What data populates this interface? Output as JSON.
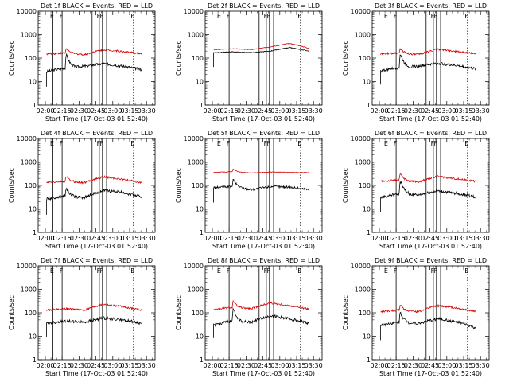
{
  "page": {
    "background": "#ffffff",
    "events_color": "#000000",
    "lld_color": "#d40000"
  },
  "chart_data": [
    {
      "type": "line",
      "detector": "1f",
      "title": "Det 1f BLACK = Events, RED = LLD",
      "xlabel": "Start Time (17-Oct-03 01:52:40)",
      "ylabel": "Counts/sec",
      "xticks": [
        "02:00",
        "02:15",
        "02:30",
        "02:45",
        "03:00",
        "03:15",
        "03:30"
      ],
      "yticks": [
        "1",
        "10",
        "100",
        "1000",
        "10000"
      ],
      "ylim": [
        1,
        10000
      ],
      "xlim_min": [
        0,
        100
      ],
      "series": [
        {
          "name": "Events",
          "color": "#000000",
          "peak": 145,
          "peak_at": 21,
          "base": [
            26,
            38,
            45,
            58,
            45,
            32
          ],
          "noise": 0.06
        },
        {
          "name": "LLD",
          "color": "#d40000",
          "peak": 260,
          "peak_at": 21,
          "base": [
            150,
            165,
            140,
            230,
            190,
            150
          ],
          "noise": 0.04
        }
      ],
      "markers": [
        {
          "t": 8,
          "label": "E",
          "style": "solid"
        },
        {
          "t": 17,
          "label": "F",
          "style": "solid"
        },
        {
          "t": 46,
          "label": "",
          "style": "solid"
        },
        {
          "t": 53,
          "label": "F",
          "style": "solid"
        },
        {
          "t": 56,
          "label": "F",
          "style": "solid"
        },
        {
          "t": 60,
          "label": "",
          "style": "solid"
        },
        {
          "t": 86,
          "label": "E",
          "style": "dotted"
        }
      ]
    },
    {
      "type": "line",
      "detector": "2f",
      "title": "Det 2f BLACK = Events, RED = LLD",
      "xlabel": "Start Time (17-Oct-03 01:52:40)",
      "ylabel": "Counts/sec",
      "xticks": [
        "02:00",
        "02:15",
        "02:30",
        "02:45",
        "03:00",
        "03:15",
        "03:30"
      ],
      "yticks": [
        "1",
        "10",
        "100",
        "1000",
        "10000"
      ],
      "ylim": [
        1,
        10000
      ],
      "series": [
        {
          "name": "Events",
          "color": "#000000",
          "peak": 0,
          "peak_at": 21,
          "base": [
            170,
            185,
            170,
            200,
            280,
            200
          ],
          "noise": 0.015
        },
        {
          "name": "LLD",
          "color": "#d40000",
          "peak": 0,
          "peak_at": 21,
          "base": [
            230,
            250,
            230,
            300,
            420,
            260
          ],
          "noise": 0.015
        }
      ],
      "markers": [
        {
          "t": 8,
          "label": "E",
          "style": "solid"
        },
        {
          "t": 17,
          "label": "F",
          "style": "solid"
        },
        {
          "t": 46,
          "label": "",
          "style": "solid"
        },
        {
          "t": 53,
          "label": "F",
          "style": "solid"
        },
        {
          "t": 56,
          "label": "F",
          "style": "solid"
        },
        {
          "t": 60,
          "label": "",
          "style": "solid"
        },
        {
          "t": 86,
          "label": "E",
          "style": "dotted"
        }
      ]
    },
    {
      "type": "line",
      "detector": "3f",
      "title": "Det 3f BLACK = Events, RED = LLD",
      "xlabel": "Start Time (17-Oct-03 01:52:40)",
      "ylabel": "Counts/sec",
      "xticks": [
        "02:00",
        "02:15",
        "02:30",
        "02:45",
        "03:00",
        "03:15",
        "03:30"
      ],
      "yticks": [
        "1",
        "10",
        "100",
        "1000",
        "10000"
      ],
      "ylim": [
        1,
        10000
      ],
      "series": [
        {
          "name": "Events",
          "color": "#000000",
          "peak": 150,
          "peak_at": 21,
          "base": [
            28,
            40,
            45,
            60,
            48,
            34
          ],
          "noise": 0.06
        },
        {
          "name": "LLD",
          "color": "#d40000",
          "peak": 260,
          "peak_at": 21,
          "base": [
            150,
            165,
            140,
            240,
            190,
            150
          ],
          "noise": 0.04
        }
      ],
      "markers": [
        {
          "t": 8,
          "label": "E",
          "style": "solid"
        },
        {
          "t": 17,
          "label": "F",
          "style": "solid"
        },
        {
          "t": 46,
          "label": "",
          "style": "solid"
        },
        {
          "t": 53,
          "label": "F",
          "style": "solid"
        },
        {
          "t": 56,
          "label": "F",
          "style": "solid"
        },
        {
          "t": 60,
          "label": "",
          "style": "solid"
        },
        {
          "t": 86,
          "label": "E",
          "style": "dotted"
        }
      ]
    },
    {
      "type": "line",
      "detector": "4f",
      "title": "Det 4f BLACK = Events, RED = LLD",
      "xlabel": "Start Time (17-Oct-03 01:52:40)",
      "ylabel": "Counts/sec",
      "xticks": [
        "02:00",
        "02:15",
        "02:30",
        "02:45",
        "03:00",
        "03:15",
        "03:30"
      ],
      "yticks": [
        "1",
        "10",
        "100",
        "1000",
        "10000"
      ],
      "ylim": [
        1,
        10000
      ],
      "series": [
        {
          "name": "Events",
          "color": "#000000",
          "peak": 80,
          "peak_at": 21,
          "base": [
            26,
            35,
            30,
            60,
            50,
            32
          ],
          "noise": 0.06
        },
        {
          "name": "LLD",
          "color": "#d40000",
          "peak": 250,
          "peak_at": 21,
          "base": [
            130,
            150,
            130,
            230,
            180,
            130
          ],
          "noise": 0.04
        }
      ],
      "markers": [
        {
          "t": 8,
          "label": "E",
          "style": "solid"
        },
        {
          "t": 17,
          "label": "F",
          "style": "solid"
        },
        {
          "t": 46,
          "label": "",
          "style": "solid"
        },
        {
          "t": 53,
          "label": "F",
          "style": "solid"
        },
        {
          "t": 56,
          "label": "F",
          "style": "solid"
        },
        {
          "t": 60,
          "label": "",
          "style": "solid"
        },
        {
          "t": 86,
          "label": "E",
          "style": "dotted"
        }
      ]
    },
    {
      "type": "line",
      "detector": "5f",
      "title": "Det 5f BLACK = Events, RED = LLD",
      "xlabel": "Start Time (17-Oct-03 01:52:40)",
      "ylabel": "Counts/sec",
      "xticks": [
        "02:00",
        "02:15",
        "02:30",
        "02:45",
        "03:00",
        "03:15",
        "03:30"
      ],
      "yticks": [
        "1",
        "10",
        "100",
        "1000",
        "10000"
      ],
      "ylim": [
        1,
        10000
      ],
      "series": [
        {
          "name": "Events",
          "color": "#000000",
          "peak": 180,
          "peak_at": 21,
          "base": [
            80,
            90,
            65,
            90,
            85,
            65
          ],
          "noise": 0.05
        },
        {
          "name": "LLD",
          "color": "#d40000",
          "peak": 500,
          "peak_at": 21,
          "base": [
            360,
            380,
            340,
            370,
            360,
            350
          ],
          "noise": 0.012
        }
      ],
      "markers": [
        {
          "t": 8,
          "label": "E",
          "style": "solid"
        },
        {
          "t": 17,
          "label": "F",
          "style": "solid"
        },
        {
          "t": 46,
          "label": "",
          "style": "solid"
        },
        {
          "t": 53,
          "label": "F",
          "style": "solid"
        },
        {
          "t": 56,
          "label": "F",
          "style": "solid"
        },
        {
          "t": 60,
          "label": "",
          "style": "solid"
        },
        {
          "t": 86,
          "label": "E",
          "style": "dotted"
        }
      ]
    },
    {
      "type": "line",
      "detector": "6f",
      "title": "Det 6f BLACK = Events, RED = LLD",
      "xlabel": "Start Time (17-Oct-03 01:52:40)",
      "ylabel": "Counts/sec",
      "xticks": [
        "02:00",
        "02:15",
        "02:30",
        "02:45",
        "03:00",
        "03:15",
        "03:30"
      ],
      "yticks": [
        "1",
        "10",
        "100",
        "1000",
        "10000"
      ],
      "ylim": [
        1,
        10000
      ],
      "series": [
        {
          "name": "Events",
          "color": "#000000",
          "peak": 160,
          "peak_at": 21,
          "base": [
            30,
            45,
            40,
            58,
            45,
            32
          ],
          "noise": 0.06
        },
        {
          "name": "LLD",
          "color": "#d40000",
          "peak": 320,
          "peak_at": 21,
          "base": [
            150,
            170,
            140,
            240,
            190,
            150
          ],
          "noise": 0.04
        }
      ],
      "markers": [
        {
          "t": 8,
          "label": "E",
          "style": "solid"
        },
        {
          "t": 17,
          "label": "F",
          "style": "solid"
        },
        {
          "t": 46,
          "label": "",
          "style": "solid"
        },
        {
          "t": 53,
          "label": "F",
          "style": "solid"
        },
        {
          "t": 56,
          "label": "F",
          "style": "solid"
        },
        {
          "t": 60,
          "label": "",
          "style": "solid"
        },
        {
          "t": 86,
          "label": "E",
          "style": "dotted"
        }
      ]
    },
    {
      "type": "line",
      "detector": "7f",
      "title": "Det 7f BLACK = Events, RED = LLD",
      "xlabel": "Start Time (17-Oct-03 01:52:40)",
      "ylabel": "Counts/sec",
      "xticks": [
        "02:00",
        "02:15",
        "02:30",
        "02:45",
        "03:00",
        "03:15",
        "03:30"
      ],
      "yticks": [
        "1",
        "10",
        "100",
        "1000",
        "10000"
      ],
      "ylim": [
        1,
        10000
      ],
      "series": [
        {
          "name": "Events",
          "color": "#000000",
          "peak": 0,
          "peak_at": 21,
          "base": [
            35,
            45,
            40,
            60,
            50,
            35
          ],
          "noise": 0.06
        },
        {
          "name": "LLD",
          "color": "#d40000",
          "peak": 0,
          "peak_at": 21,
          "base": [
            130,
            150,
            130,
            230,
            180,
            130
          ],
          "noise": 0.04
        }
      ],
      "markers": [
        {
          "t": 8,
          "label": "E",
          "style": "solid"
        },
        {
          "t": 17,
          "label": "F",
          "style": "solid"
        },
        {
          "t": 46,
          "label": "",
          "style": "solid"
        },
        {
          "t": 53,
          "label": "F",
          "style": "solid"
        },
        {
          "t": 56,
          "label": "F",
          "style": "solid"
        },
        {
          "t": 60,
          "label": "",
          "style": "solid"
        },
        {
          "t": 86,
          "label": "E",
          "style": "dotted"
        }
      ]
    },
    {
      "type": "line",
      "detector": "8f",
      "title": "Det 8f BLACK = Events, RED = LLD",
      "xlabel": "Start Time (17-Oct-03 01:52:40)",
      "ylabel": "Counts/sec",
      "xticks": [
        "02:00",
        "02:15",
        "02:30",
        "02:45",
        "03:00",
        "03:15",
        "03:30"
      ],
      "yticks": [
        "1",
        "10",
        "100",
        "1000",
        "10000"
      ],
      "ylim": [
        1,
        10000
      ],
      "series": [
        {
          "name": "Events",
          "color": "#000000",
          "peak": 150,
          "peak_at": 21,
          "base": [
            30,
            45,
            40,
            75,
            55,
            35
          ],
          "noise": 0.06
        },
        {
          "name": "LLD",
          "color": "#d40000",
          "peak": 320,
          "peak_at": 21,
          "base": [
            140,
            170,
            150,
            260,
            200,
            140
          ],
          "noise": 0.04
        }
      ],
      "markers": [
        {
          "t": 8,
          "label": "E",
          "style": "solid"
        },
        {
          "t": 17,
          "label": "F",
          "style": "solid"
        },
        {
          "t": 46,
          "label": "",
          "style": "solid"
        },
        {
          "t": 53,
          "label": "F",
          "style": "solid"
        },
        {
          "t": 56,
          "label": "F",
          "style": "solid"
        },
        {
          "t": 60,
          "label": "",
          "style": "solid"
        },
        {
          "t": 86,
          "label": "E",
          "style": "dotted"
        }
      ]
    },
    {
      "type": "line",
      "detector": "9f",
      "title": "Det 9f BLACK = Events, RED = LLD",
      "xlabel": "Start Time (17-Oct-03 01:52:40)",
      "ylabel": "Counts/sec",
      "xticks": [
        "02:00",
        "02:15",
        "02:30",
        "02:45",
        "03:00",
        "03:15",
        "03:30"
      ],
      "yticks": [
        "1",
        "10",
        "100",
        "1000",
        "10000"
      ],
      "ylim": [
        1,
        10000
      ],
      "series": [
        {
          "name": "Events",
          "color": "#000000",
          "peak": 110,
          "peak_at": 21,
          "base": [
            30,
            40,
            35,
            55,
            40,
            22
          ],
          "noise": 0.06
        },
        {
          "name": "LLD",
          "color": "#d40000",
          "peak": 220,
          "peak_at": 21,
          "base": [
            110,
            130,
            110,
            200,
            160,
            110
          ],
          "noise": 0.04
        }
      ],
      "markers": [
        {
          "t": 8,
          "label": "E",
          "style": "solid"
        },
        {
          "t": 17,
          "label": "F",
          "style": "solid"
        },
        {
          "t": 46,
          "label": "",
          "style": "solid"
        },
        {
          "t": 53,
          "label": "F",
          "style": "solid"
        },
        {
          "t": 56,
          "label": "F",
          "style": "solid"
        },
        {
          "t": 60,
          "label": "",
          "style": "solid"
        },
        {
          "t": 86,
          "label": "E",
          "style": "dotted"
        }
      ]
    }
  ]
}
